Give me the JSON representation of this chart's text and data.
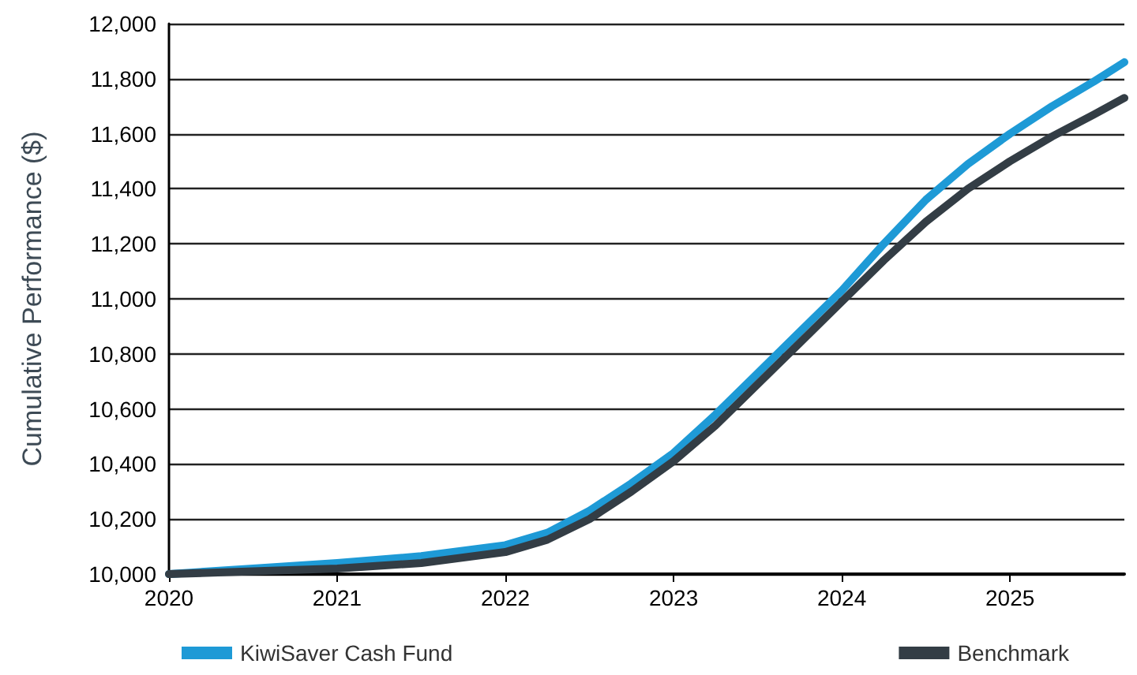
{
  "chart_data": {
    "type": "line",
    "ylabel": "Cumulative Performance ($)",
    "xlim": [
      2020,
      2025.68
    ],
    "xticks": [
      2020,
      2021,
      2022,
      2023,
      2024,
      2025
    ],
    "ylim": [
      10000,
      12000
    ],
    "yticks": [
      {
        "value": 10000,
        "label": "10,000"
      },
      {
        "value": 10200,
        "label": "10,200"
      },
      {
        "value": 10400,
        "label": "10,400"
      },
      {
        "value": 10600,
        "label": "10,600"
      },
      {
        "value": 10800,
        "label": "10,800"
      },
      {
        "value": 11000,
        "label": "11,000"
      },
      {
        "value": 11200,
        "label": "11,200"
      },
      {
        "value": 11400,
        "label": "11,400"
      },
      {
        "value": 11600,
        "label": "11,600"
      },
      {
        "value": 11800,
        "label": "11,800"
      },
      {
        "value": 12000,
        "label": "12,000"
      }
    ],
    "grid": "y",
    "legend": "bottom",
    "marker": "none",
    "line_style": "solid",
    "x": [
      2020,
      2020.5,
      2021,
      2021.5,
      2022,
      2022.25,
      2022.5,
      2022.75,
      2023,
      2023.25,
      2023.5,
      2023.75,
      2024,
      2024.25,
      2024.5,
      2024.75,
      2025,
      2025.25,
      2025.5,
      2025.68
    ],
    "series": [
      {
        "name": "KiwiSaver Cash Fund",
        "color": "#1e9ad6",
        "values": [
          10000,
          10020,
          10040,
          10065,
          10105,
          10150,
          10230,
          10330,
          10440,
          10580,
          10730,
          10880,
          11030,
          11200,
          11360,
          11490,
          11600,
          11700,
          11790,
          11860
        ]
      },
      {
        "name": "Benchmark",
        "color": "#333d45",
        "values": [
          10000,
          10010,
          10020,
          10040,
          10080,
          10125,
          10200,
          10300,
          10410,
          10540,
          10690,
          10840,
          10990,
          11140,
          11280,
          11400,
          11500,
          11590,
          11670,
          11730
        ]
      }
    ]
  }
}
